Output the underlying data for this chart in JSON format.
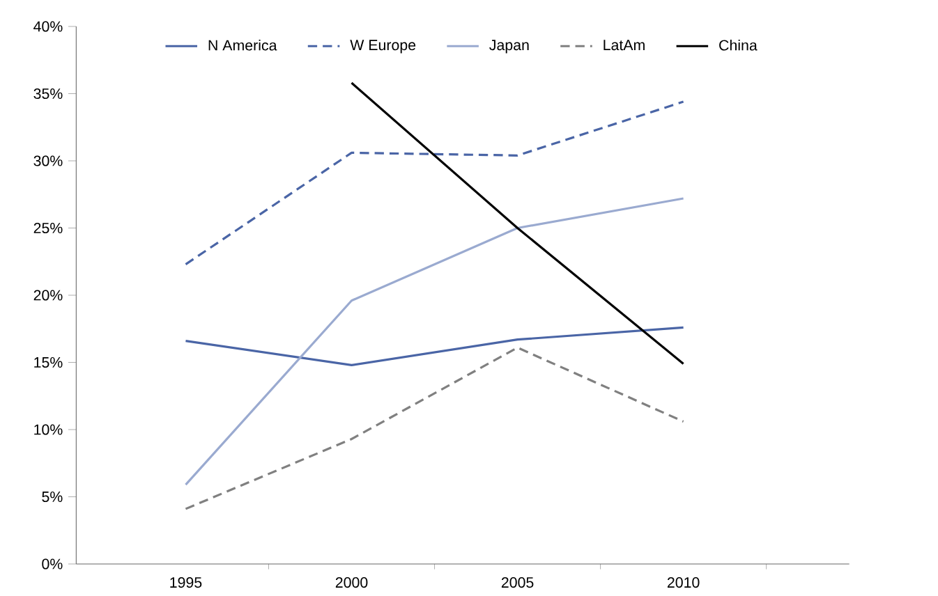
{
  "chart_data": {
    "type": "line",
    "categories": [
      "1995",
      "2000",
      "2005",
      "2010"
    ],
    "series": [
      {
        "name": "N America",
        "color": "#4a65a6",
        "line_style": "solid",
        "values": [
          16.6,
          14.8,
          16.7,
          17.6
        ]
      },
      {
        "name": "W Europe",
        "color": "#4a65a6",
        "line_style": "dashed",
        "values": [
          22.3,
          30.6,
          30.4,
          34.4
        ]
      },
      {
        "name": "Japan",
        "color": "#9aaad0",
        "line_style": "solid",
        "values": [
          5.9,
          19.6,
          25.0,
          27.2
        ]
      },
      {
        "name": "LatAm",
        "color": "#808080",
        "line_style": "dashed",
        "values": [
          4.1,
          9.3,
          16.1,
          10.6
        ]
      },
      {
        "name": "China",
        "color": "#000000",
        "line_style": "solid",
        "values": [
          null,
          35.8,
          25.0,
          14.9
        ]
      }
    ],
    "ylim": [
      0,
      40
    ],
    "yticks": [
      {
        "value": 0,
        "label": "0%"
      },
      {
        "value": 5,
        "label": "5%"
      },
      {
        "value": 10,
        "label": "10%"
      },
      {
        "value": 15,
        "label": "15%"
      },
      {
        "value": 20,
        "label": "20%"
      },
      {
        "value": 25,
        "label": "25%"
      },
      {
        "value": 30,
        "label": "30%"
      },
      {
        "value": 35,
        "label": "35%"
      },
      {
        "value": 40,
        "label": "40%"
      }
    ],
    "legend": "top",
    "grid": false,
    "marker": "none"
  }
}
